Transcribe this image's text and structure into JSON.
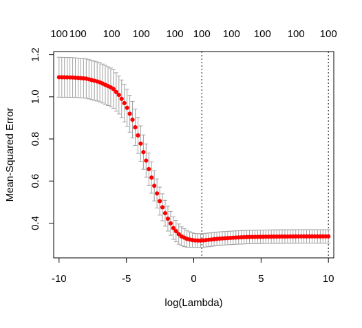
{
  "chart_data": {
    "type": "scatter",
    "title": "",
    "xlabel": "log(Lambda)",
    "ylabel": "Mean-Squared Error",
    "xlim": [
      -10.4,
      10.4
    ],
    "ylim": [
      0.235,
      1.215
    ],
    "x_ticks": [
      -10,
      -5,
      0,
      5,
      10
    ],
    "y_ticks": [
      0.4,
      0.6,
      0.8,
      1.0,
      1.2
    ],
    "x_tick_labels": [
      "-10",
      "-5",
      "0",
      "5",
      "10"
    ],
    "y_tick_labels": [
      "0.4",
      "0.6",
      "0.8",
      "1.0",
      "1.2"
    ],
    "top_axis": {
      "x": [
        -10,
        -8.6,
        -6.1,
        -3.9,
        -1.4,
        0.6,
        2.8,
        5.1,
        7.6,
        10
      ],
      "labels": [
        "100",
        "100",
        "100",
        "100",
        "100",
        "100",
        "100",
        "100",
        "100",
        "100"
      ]
    },
    "vlines": [
      0.6,
      10
    ],
    "grid": false,
    "point_color": "#ff0000",
    "errorbar_color": "#a0a0a0",
    "curve": {
      "x_start": -10,
      "x_end": 10,
      "n_points": 100,
      "keypoints": [
        [
          -10,
          1.093
        ],
        [
          -9,
          1.092
        ],
        [
          -8,
          1.087
        ],
        [
          -7,
          1.07
        ],
        [
          -6,
          1.04
        ],
        [
          -5.5,
          1.005
        ],
        [
          -5,
          0.955
        ],
        [
          -4.5,
          0.885
        ],
        [
          -4,
          0.79
        ],
        [
          -3.5,
          0.69
        ],
        [
          -3,
          0.59
        ],
        [
          -2.5,
          0.5
        ],
        [
          -2,
          0.43
        ],
        [
          -1.5,
          0.375
        ],
        [
          -1,
          0.34
        ],
        [
          -0.5,
          0.325
        ],
        [
          0,
          0.318
        ],
        [
          0.6,
          0.317
        ],
        [
          1,
          0.32
        ],
        [
          2,
          0.327
        ],
        [
          3,
          0.331
        ],
        [
          4,
          0.334
        ],
        [
          6,
          0.336
        ],
        [
          8,
          0.337
        ],
        [
          10,
          0.337
        ]
      ],
      "se_keypoints": [
        [
          -10,
          0.095
        ],
        [
          -6,
          0.092
        ],
        [
          -4,
          0.085
        ],
        [
          -2,
          0.06
        ],
        [
          0,
          0.033
        ],
        [
          2,
          0.032
        ],
        [
          10,
          0.032
        ]
      ]
    }
  }
}
